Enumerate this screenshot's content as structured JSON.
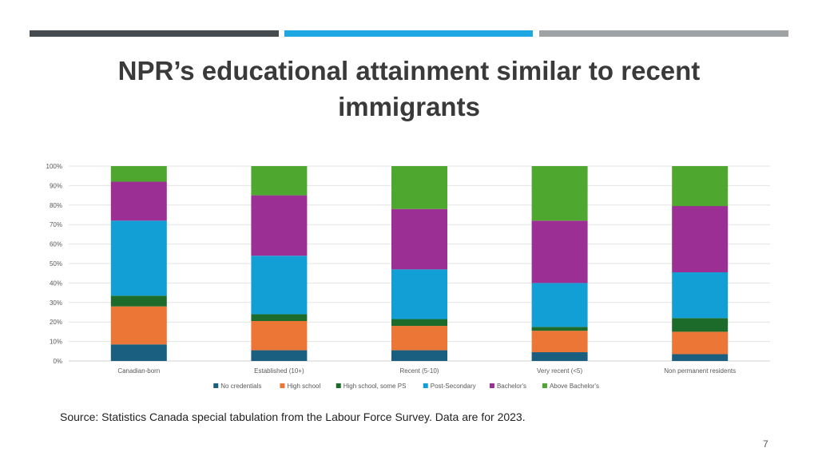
{
  "slide": {
    "title": "NPR’s educational attainment similar to recent immigrants",
    "source": "Source: Statistics Canada special tabulation from the Labour Force Survey. Data are for 2023.",
    "page_number": "7",
    "top_bars": [
      {
        "color": "#454b4f"
      },
      {
        "color": "#1ea7e0"
      },
      {
        "color": "#9fa3a6"
      }
    ]
  },
  "chart_data": {
    "type": "bar",
    "stacked": true,
    "categories": [
      "Canadian-born",
      "Established (10+)",
      "Recent (5-10)",
      "Very recent (<5)",
      "Non permanent residents"
    ],
    "ylim": [
      0,
      100
    ],
    "yticks": [
      0,
      10,
      20,
      30,
      40,
      50,
      60,
      70,
      80,
      90,
      100
    ],
    "ytick_labels": [
      "0%",
      "10%",
      "20%",
      "30%",
      "40%",
      "50%",
      "60%",
      "70%",
      "80%",
      "90%",
      "100%"
    ],
    "grid": true,
    "legend_position": "bottom",
    "series": [
      {
        "name": "No credentials",
        "color": "#1a5f80",
        "values": [
          8.5,
          5.5,
          5.5,
          4.5,
          3.5
        ]
      },
      {
        "name": "High school",
        "color": "#ec7635",
        "values": [
          19.5,
          15,
          12.5,
          11,
          11.5
        ]
      },
      {
        "name": "High school, some PS",
        "color": "#1c6b2b",
        "values": [
          5.5,
          3.5,
          3.5,
          2,
          7
        ]
      },
      {
        "name": "Post-Secondary",
        "color": "#119fd6",
        "values": [
          38.5,
          30,
          25.5,
          22.5,
          23.5
        ]
      },
      {
        "name": "Bachelor's",
        "color": "#9b2f93",
        "values": [
          20,
          31,
          31,
          32,
          34
        ]
      },
      {
        "name": "Above Bachelor's",
        "color": "#4ea72e",
        "values": [
          8,
          15,
          22,
          28,
          20.5
        ]
      }
    ]
  }
}
